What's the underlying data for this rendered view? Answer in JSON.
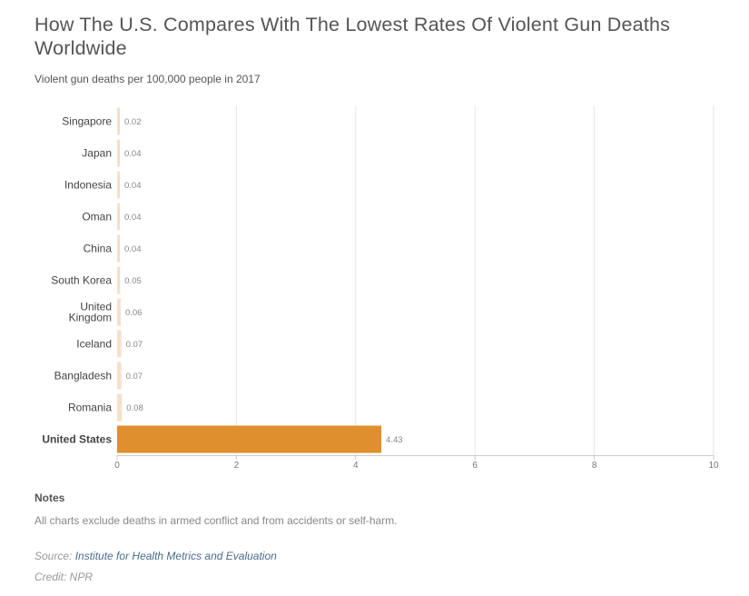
{
  "header": {
    "title": "How The U.S. Compares With The Lowest Rates Of Violent Gun Deaths Worldwide",
    "subtitle": "Violent gun deaths per 100,000 people in 2017"
  },
  "footer": {
    "notes_heading": "Notes",
    "notes_text": "All charts exclude deaths in armed conflict and from accidents or self-harm.",
    "source_prefix": "Source:",
    "source_link": "Institute for Health Metrics and Evaluation",
    "credit": "Credit: NPR"
  },
  "colors": {
    "highlight_bar": "#e08f2e",
    "default_bar": "#f5e0cc",
    "grid": "#e6e6e6",
    "axis_label": "#777777",
    "category_label": "#444444",
    "value_label": "#888888"
  },
  "chart_data": {
    "type": "bar",
    "orientation": "horizontal",
    "categories": [
      "Singapore",
      "Japan",
      "Indonesia",
      "Oman",
      "China",
      "South Korea",
      "United Kingdom",
      "Iceland",
      "Bangladesh",
      "Romania",
      "United States"
    ],
    "category_lines": [
      [
        "Singapore"
      ],
      [
        "Japan"
      ],
      [
        "Indonesia"
      ],
      [
        "Oman"
      ],
      [
        "China"
      ],
      [
        "South Korea"
      ],
      [
        "United",
        "Kingdom"
      ],
      [
        "Iceland"
      ],
      [
        "Bangladesh"
      ],
      [
        "Romania"
      ],
      [
        "United States"
      ]
    ],
    "values": [
      0.02,
      0.04,
      0.04,
      0.04,
      0.04,
      0.05,
      0.06,
      0.07,
      0.07,
      0.08,
      4.43
    ],
    "value_labels": [
      "0.02",
      "0.04",
      "0.04",
      "0.04",
      "0.04",
      "0.05",
      "0.06",
      "0.07",
      "0.07",
      "0.08",
      "4.43"
    ],
    "highlight": "United States",
    "xlim": [
      0,
      10
    ],
    "xticks": [
      0,
      2,
      4,
      6,
      8,
      10
    ],
    "grid": true,
    "xlabel": "",
    "ylabel": ""
  }
}
